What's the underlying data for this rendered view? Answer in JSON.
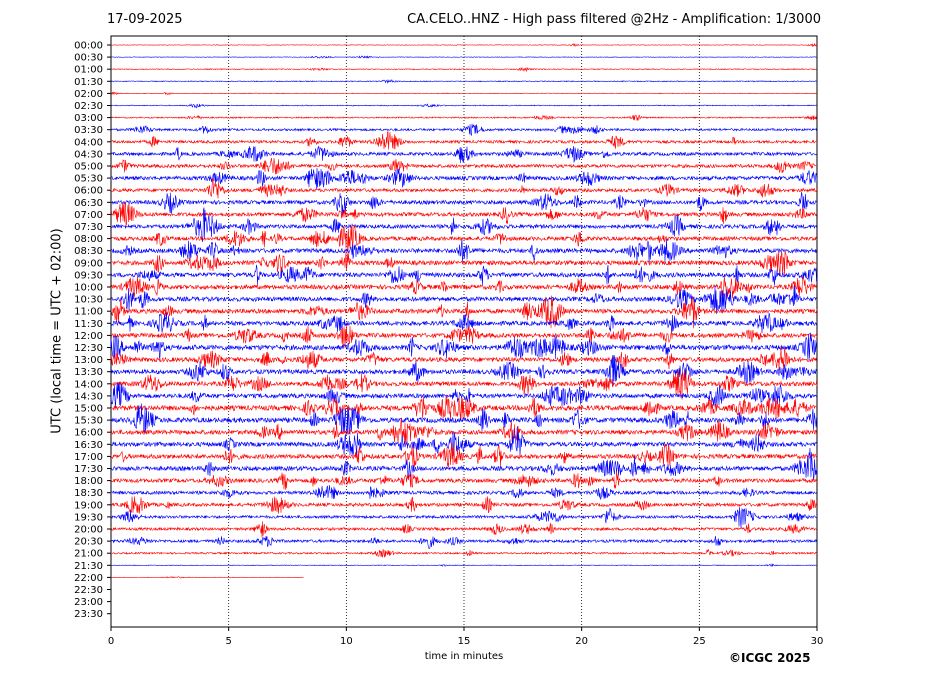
{
  "header": {
    "date": "17-09-2025",
    "title": "CA.CELO..HNZ - High pass filtered @2Hz - Amplification: 1/3000"
  },
  "footer": {
    "copyright": "©ICGC 2025"
  },
  "chart_data": {
    "type": "line",
    "xlabel": "time in minutes",
    "ylabel": "UTC (local time = UTC + 02:00)",
    "xlim": [
      0,
      30
    ],
    "x_ticks": [
      0,
      5,
      10,
      15,
      20,
      25,
      30
    ],
    "x_gridlines": [
      5,
      10,
      15,
      20,
      25
    ],
    "y_tick_labels": [
      "00:00",
      "00:30",
      "01:00",
      "01:30",
      "02:00",
      "02:30",
      "03:00",
      "03:30",
      "04:00",
      "04:30",
      "05:00",
      "05:30",
      "06:00",
      "06:30",
      "07:00",
      "07:30",
      "08:00",
      "08:30",
      "09:00",
      "09:30",
      "10:00",
      "10:30",
      "11:00",
      "11:30",
      "12:00",
      "12:30",
      "13:00",
      "13:30",
      "14:00",
      "14:30",
      "15:00",
      "15:30",
      "16:00",
      "16:30",
      "17:00",
      "17:30",
      "18:00",
      "18:30",
      "19:00",
      "19:30",
      "20:00",
      "20:30",
      "21:00",
      "21:30",
      "22:00",
      "22:30",
      "23:00",
      "23:30"
    ],
    "trace_colors": [
      "#ff0000",
      "#0000ff"
    ],
    "traces": [
      {
        "label": "00:00",
        "end": 30,
        "amp": 0.5
      },
      {
        "label": "00:30",
        "end": 30,
        "amp": 0.5
      },
      {
        "label": "01:00",
        "end": 30,
        "amp": 0.8
      },
      {
        "label": "01:30",
        "end": 30,
        "amp": 0.8
      },
      {
        "label": "02:00",
        "end": 30,
        "amp": 0.6
      },
      {
        "label": "02:30",
        "end": 30,
        "amp": 0.8
      },
      {
        "label": "03:00",
        "end": 30,
        "amp": 1.2
      },
      {
        "label": "03:30",
        "end": 30,
        "amp": 2
      },
      {
        "label": "04:00",
        "end": 30,
        "amp": 2.5
      },
      {
        "label": "04:30",
        "end": 30,
        "amp": 3
      },
      {
        "label": "05:00",
        "end": 30,
        "amp": 3
      },
      {
        "label": "05:30",
        "end": 30,
        "amp": 3.5
      },
      {
        "label": "06:00",
        "end": 30,
        "amp": 3
      },
      {
        "label": "06:30",
        "end": 30,
        "amp": 3.5
      },
      {
        "label": "07:00",
        "end": 30,
        "amp": 3.5
      },
      {
        "label": "07:30",
        "end": 30,
        "amp": 3.5
      },
      {
        "label": "08:00",
        "end": 30,
        "amp": 3.5
      },
      {
        "label": "08:30",
        "end": 30,
        "amp": 4
      },
      {
        "label": "09:00",
        "end": 30,
        "amp": 4
      },
      {
        "label": "09:30",
        "end": 30,
        "amp": 4
      },
      {
        "label": "10:00",
        "end": 30,
        "amp": 4
      },
      {
        "label": "10:30",
        "end": 30,
        "amp": 4
      },
      {
        "label": "11:00",
        "end": 30,
        "amp": 4
      },
      {
        "label": "11:30",
        "end": 30,
        "amp": 4
      },
      {
        "label": "12:00",
        "end": 30,
        "amp": 4
      },
      {
        "label": "12:30",
        "end": 30,
        "amp": 4.5
      },
      {
        "label": "13:00",
        "end": 30,
        "amp": 4
      },
      {
        "label": "13:30",
        "end": 30,
        "amp": 4
      },
      {
        "label": "14:00",
        "end": 30,
        "amp": 4
      },
      {
        "label": "14:30",
        "end": 30,
        "amp": 4
      },
      {
        "label": "15:00",
        "end": 30,
        "amp": 4.5
      },
      {
        "label": "15:30",
        "end": 30,
        "amp": 4.5
      },
      {
        "label": "16:00",
        "end": 30,
        "amp": 4
      },
      {
        "label": "16:30",
        "end": 30,
        "amp": 4
      },
      {
        "label": "17:00",
        "end": 30,
        "amp": 4
      },
      {
        "label": "17:30",
        "end": 30,
        "amp": 4
      },
      {
        "label": "18:00",
        "end": 30,
        "amp": 3.5
      },
      {
        "label": "18:30",
        "end": 30,
        "amp": 3
      },
      {
        "label": "19:00",
        "end": 30,
        "amp": 3
      },
      {
        "label": "19:30",
        "end": 30,
        "amp": 2.5
      },
      {
        "label": "20:00",
        "end": 30,
        "amp": 2.5
      },
      {
        "label": "20:30",
        "end": 30,
        "amp": 2.5
      },
      {
        "label": "21:00",
        "end": 30,
        "amp": 1.5
      },
      {
        "label": "21:30",
        "end": 30,
        "amp": 0.6
      },
      {
        "label": "22:00",
        "end": 8.2,
        "amp": 0.4
      }
    ]
  }
}
